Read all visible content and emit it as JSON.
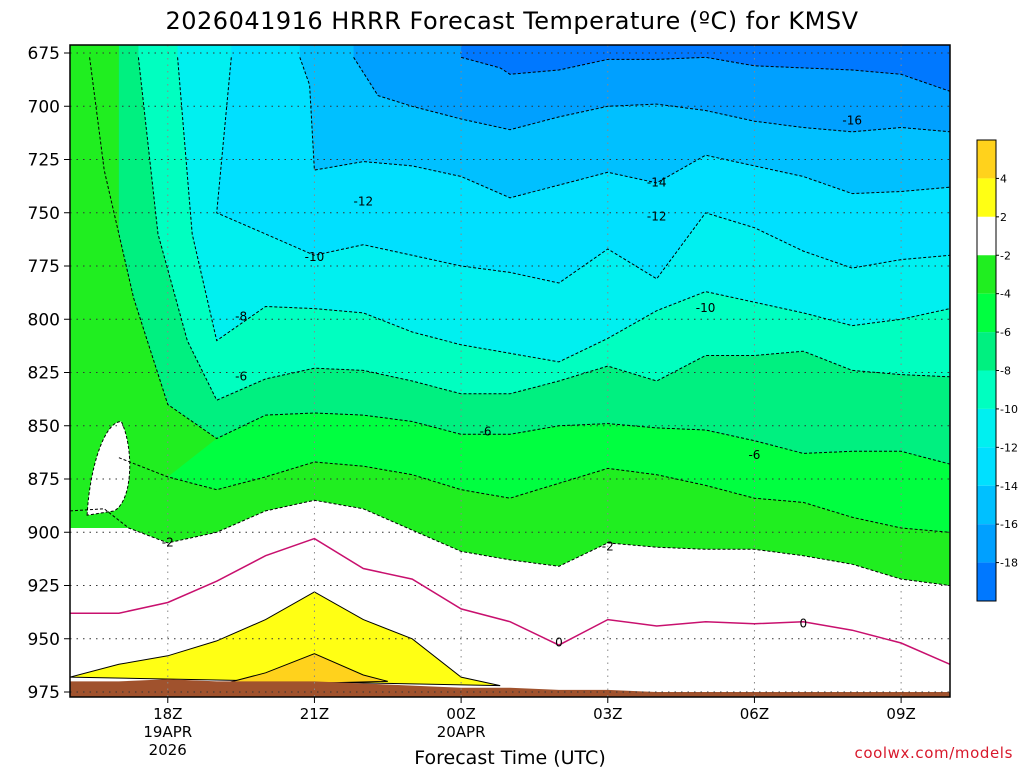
{
  "chart_data": {
    "type": "contour",
    "title": "2026041916 HRRR Forecast Temperature (ºC) for KMSV",
    "xlabel": "Forecast Time (UTC)",
    "ylabel": "",
    "x_units": "hours after 2026-04-19 16Z",
    "xlim": [
      16,
      34
    ],
    "ylim": [
      975,
      675
    ],
    "y_scale": "pressure (hPa), increasing downward",
    "x_ticks": [
      {
        "x": 18,
        "lines": [
          "18Z",
          "19APR",
          "2026"
        ]
      },
      {
        "x": 21,
        "lines": [
          "21Z"
        ]
      },
      {
        "x": 24,
        "lines": [
          "00Z",
          "20APR"
        ]
      },
      {
        "x": 27,
        "lines": [
          "03Z"
        ]
      },
      {
        "x": 30,
        "lines": [
          "06Z"
        ]
      },
      {
        "x": 33,
        "lines": [
          "09Z"
        ]
      }
    ],
    "y_ticks": [
      675,
      700,
      725,
      750,
      775,
      800,
      825,
      850,
      875,
      900,
      925,
      950,
      975
    ],
    "grid": "dotted",
    "colorbar": {
      "position": "right",
      "levels": [
        4,
        2,
        -2,
        -4,
        -6,
        -8,
        -10,
        -12,
        -14,
        -16,
        -18
      ],
      "labels": [
        "4",
        "2",
        "-2",
        "-4",
        "-6",
        "-8",
        "-10",
        "-12",
        "-14",
        "-16",
        "-18"
      ],
      "colors": [
        "#ffd21c",
        "#ffff14",
        "#ffffff",
        "#20ee20",
        "#00ff40",
        "#00f080",
        "#00ffc0",
        "#00f0f0",
        "#00e0ff",
        "#00c0ff",
        "#00a0ff",
        "#0078ff"
      ]
    },
    "contour_labels": [
      "-16",
      "-14",
      "-12",
      "-12",
      "-10",
      "-10",
      "-8",
      "-6",
      "-6",
      "-6",
      "-2",
      "-2",
      "0",
      "0"
    ],
    "contour_colors": {
      "negative": "#000000",
      "zero": "#c8106e",
      "positive": "#000000"
    },
    "terrain_color": "#a0522d",
    "isotherms": [
      {
        "level": -2,
        "points": [
          [
            16,
            890
          ],
          [
            16.7,
            889
          ],
          [
            17.2,
            898
          ],
          [
            18,
            905
          ],
          [
            19,
            900
          ],
          [
            20,
            890
          ],
          [
            21,
            885
          ],
          [
            22,
            889
          ],
          [
            23,
            899
          ],
          [
            24,
            909
          ],
          [
            25,
            913
          ],
          [
            26,
            916
          ],
          [
            27,
            905
          ],
          [
            28,
            907
          ],
          [
            29,
            908
          ],
          [
            30,
            908
          ],
          [
            31,
            911
          ],
          [
            32,
            915
          ],
          [
            33,
            922
          ],
          [
            34,
            925
          ]
        ]
      },
      {
        "level": -4,
        "points": [
          [
            17,
            865
          ],
          [
            18,
            874
          ],
          [
            19,
            880
          ],
          [
            20,
            874
          ],
          [
            21,
            867
          ],
          [
            22,
            869
          ],
          [
            23,
            873
          ],
          [
            24,
            880
          ],
          [
            25,
            884
          ],
          [
            26,
            877
          ],
          [
            27,
            870
          ],
          [
            28,
            873
          ],
          [
            29,
            878
          ],
          [
            30,
            884
          ],
          [
            31,
            886
          ],
          [
            32,
            893
          ],
          [
            33,
            898
          ],
          [
            34,
            900
          ]
        ]
      },
      {
        "level": -6,
        "points": [
          [
            16.4,
            677
          ],
          [
            16.7,
            730
          ],
          [
            17.3,
            790
          ],
          [
            18,
            840
          ],
          [
            19,
            856
          ],
          [
            20,
            845
          ],
          [
            21,
            844
          ],
          [
            22,
            845
          ],
          [
            23,
            848
          ],
          [
            24,
            854
          ],
          [
            25,
            854
          ],
          [
            26,
            850
          ],
          [
            27,
            849
          ],
          [
            28,
            851
          ],
          [
            29,
            852
          ],
          [
            30,
            857
          ],
          [
            31,
            863
          ],
          [
            32,
            862
          ],
          [
            33,
            862
          ],
          [
            34,
            868
          ]
        ]
      },
      {
        "level": -8,
        "points": [
          [
            17.4,
            677
          ],
          [
            17.8,
            760
          ],
          [
            18.4,
            810
          ],
          [
            19,
            838
          ],
          [
            20,
            828
          ],
          [
            21,
            823
          ],
          [
            22,
            824
          ],
          [
            23,
            829
          ],
          [
            24,
            835
          ],
          [
            25,
            835
          ],
          [
            26,
            829
          ],
          [
            27,
            822
          ],
          [
            28,
            829
          ],
          [
            29,
            817
          ],
          [
            30,
            817
          ],
          [
            31,
            815
          ],
          [
            32,
            824
          ],
          [
            33,
            826
          ],
          [
            34,
            827
          ]
        ]
      },
      {
        "level": -10,
        "points": [
          [
            18.2,
            677
          ],
          [
            18.5,
            760
          ],
          [
            19,
            810
          ],
          [
            20,
            794
          ],
          [
            21,
            795
          ],
          [
            22,
            797
          ],
          [
            23,
            806
          ],
          [
            24,
            812
          ],
          [
            25,
            816
          ],
          [
            26,
            820
          ],
          [
            27,
            809
          ],
          [
            28,
            796
          ],
          [
            29,
            787
          ],
          [
            30,
            792
          ],
          [
            31,
            797
          ],
          [
            32,
            803
          ],
          [
            33,
            800
          ],
          [
            34,
            795
          ]
        ]
      },
      {
        "level": -12,
        "points": [
          [
            19.3,
            677
          ],
          [
            19,
            750
          ],
          [
            20,
            760
          ],
          [
            21,
            770
          ],
          [
            22,
            765
          ],
          [
            23,
            770
          ],
          [
            24,
            775
          ],
          [
            25,
            778
          ],
          [
            26,
            783
          ],
          [
            27,
            767
          ],
          [
            28,
            781
          ],
          [
            29,
            750
          ],
          [
            30,
            757
          ],
          [
            31,
            768
          ],
          [
            32,
            776
          ],
          [
            33,
            772
          ],
          [
            34,
            770
          ]
        ]
      },
      {
        "level": -14,
        "points": [
          [
            20.7,
            677
          ],
          [
            20.9,
            690
          ],
          [
            21,
            730
          ],
          [
            22,
            726
          ],
          [
            23,
            728
          ],
          [
            24,
            733
          ],
          [
            25,
            743
          ],
          [
            26,
            737
          ],
          [
            27,
            731
          ],
          [
            28,
            736
          ],
          [
            29,
            723
          ],
          [
            30,
            728
          ],
          [
            31,
            733
          ],
          [
            32,
            741
          ],
          [
            33,
            740
          ],
          [
            34,
            738
          ]
        ]
      },
      {
        "level": -16,
        "points": [
          [
            21.8,
            677
          ],
          [
            22.3,
            695
          ],
          [
            23,
            700
          ],
          [
            24,
            706
          ],
          [
            25,
            711
          ],
          [
            26,
            705
          ],
          [
            27,
            700
          ],
          [
            28,
            699
          ],
          [
            29,
            702
          ],
          [
            30,
            707
          ],
          [
            31,
            710
          ],
          [
            32,
            712
          ],
          [
            33,
            710
          ],
          [
            34,
            712
          ]
        ]
      },
      {
        "level": -18,
        "points": [
          [
            24,
            677
          ],
          [
            24.8,
            682
          ],
          [
            25,
            685
          ],
          [
            26,
            683
          ],
          [
            27,
            678
          ],
          [
            28,
            678
          ],
          [
            29,
            677
          ],
          [
            30,
            681
          ],
          [
            31,
            682
          ],
          [
            32,
            683
          ],
          [
            33,
            685
          ],
          [
            34,
            693
          ]
        ]
      },
      {
        "level": 0,
        "points": [
          [
            16,
            938
          ],
          [
            17,
            938
          ],
          [
            18,
            933
          ],
          [
            19,
            923
          ],
          [
            20,
            911
          ],
          [
            21,
            903
          ],
          [
            22,
            917
          ],
          [
            23,
            922
          ],
          [
            24,
            936
          ],
          [
            25,
            942
          ],
          [
            26,
            953
          ],
          [
            27,
            941
          ],
          [
            28,
            944
          ],
          [
            29,
            942
          ],
          [
            30,
            943
          ],
          [
            31,
            942
          ],
          [
            32,
            946
          ],
          [
            33,
            952
          ],
          [
            34,
            962
          ]
        ]
      },
      {
        "level": 2,
        "points": [
          [
            16,
            968
          ],
          [
            17,
            962
          ],
          [
            18,
            958
          ],
          [
            19,
            951
          ],
          [
            20,
            941
          ],
          [
            21,
            928
          ],
          [
            22,
            941
          ],
          [
            23,
            950
          ],
          [
            24,
            968
          ],
          [
            24.8,
            972
          ]
        ]
      },
      {
        "level": 4,
        "points": [
          [
            19,
            972
          ],
          [
            20,
            966
          ],
          [
            21,
            957
          ],
          [
            22,
            967
          ],
          [
            22.5,
            970
          ]
        ]
      }
    ],
    "terrain": {
      "description": "surface",
      "top": [
        [
          16,
          970
        ],
        [
          17,
          970
        ],
        [
          18,
          969
        ],
        [
          19,
          970
        ],
        [
          20,
          970
        ],
        [
          21,
          970
        ],
        [
          22,
          971
        ],
        [
          23,
          972
        ],
        [
          24,
          973
        ],
        [
          25,
          973
        ],
        [
          26,
          974
        ],
        [
          27,
          974
        ],
        [
          28,
          975
        ],
        [
          29,
          975
        ],
        [
          30,
          975
        ],
        [
          31,
          975
        ],
        [
          32,
          975
        ],
        [
          33,
          975
        ],
        [
          34,
          975
        ]
      ]
    }
  },
  "credit": "coolwx.com/models"
}
